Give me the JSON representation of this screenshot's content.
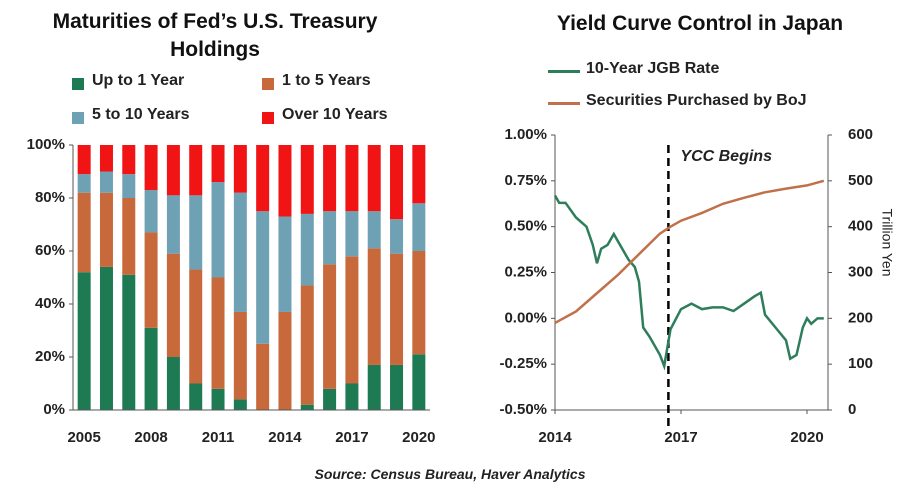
{
  "chart_data": [
    {
      "type": "bar",
      "title": "Maturities of Fed’s U.S. Treasury Holdings",
      "stacked": true,
      "categories": [
        "2005",
        null,
        null,
        "2008",
        null,
        null,
        "2011",
        null,
        null,
        "2014",
        null,
        null,
        "2017",
        null,
        null,
        "2020"
      ],
      "series": [
        {
          "name": "Up to 1 Year",
          "color": "#1e7a52",
          "values": [
            52,
            54,
            51,
            31,
            20,
            10,
            8,
            4,
            0,
            0,
            2,
            8,
            10,
            17,
            17,
            21
          ]
        },
        {
          "name": "1 to 5 Years",
          "color": "#c8693c",
          "values": [
            30,
            28,
            29,
            36,
            39,
            43,
            42,
            33,
            25,
            37,
            45,
            47,
            48,
            44,
            42,
            39
          ]
        },
        {
          "name": "5 to 10 Years",
          "color": "#6fa1b5",
          "values": [
            7,
            8,
            9,
            16,
            22,
            28,
            36,
            45,
            50,
            36,
            27,
            20,
            17,
            14,
            13,
            18
          ]
        },
        {
          "name": "Over 10 Years",
          "color": "#f01414",
          "values": [
            11,
            10,
            11,
            17,
            19,
            19,
            14,
            18,
            25,
            27,
            26,
            25,
            25,
            25,
            28,
            22
          ]
        }
      ],
      "ylim": [
        0,
        100
      ],
      "yticks": [
        {
          "value": 0,
          "label": "0%"
        },
        {
          "value": 20,
          "label": "20%"
        },
        {
          "value": 40,
          "label": "40%"
        },
        {
          "value": 60,
          "label": "60%"
        },
        {
          "value": 80,
          "label": "80%"
        },
        {
          "value": 100,
          "label": "100%"
        }
      ]
    },
    {
      "type": "line",
      "title": "Yield Curve Control in Japan",
      "y2_label": "Trillion Yen",
      "series": [
        {
          "name": "10-Year JGB Rate",
          "color": "#2e7d5b",
          "x": [
            2014.0,
            2014.1,
            2014.25,
            2014.5,
            2014.75,
            2014.9,
            2015.0,
            2015.1,
            2015.25,
            2015.4,
            2015.5,
            2015.75,
            2015.9,
            2016.0,
            2016.1,
            2016.25,
            2016.5,
            2016.6,
            2016.75,
            2017.0,
            2017.25,
            2017.5,
            2017.75,
            2018.0,
            2018.25,
            2018.5,
            2018.75,
            2018.9,
            2019.0,
            2019.25,
            2019.5,
            2019.6,
            2019.75,
            2019.9,
            2020.0,
            2020.1,
            2020.25,
            2020.4
          ],
          "values": [
            0.67,
            0.63,
            0.63,
            0.55,
            0.5,
            0.4,
            0.3,
            0.38,
            0.4,
            0.46,
            0.42,
            0.32,
            0.28,
            0.2,
            -0.05,
            -0.1,
            -0.2,
            -0.26,
            -0.06,
            0.05,
            0.08,
            0.05,
            0.06,
            0.06,
            0.04,
            0.08,
            0.12,
            0.14,
            0.02,
            -0.05,
            -0.12,
            -0.22,
            -0.2,
            -0.05,
            0.0,
            -0.03,
            0.0,
            0.0
          ]
        },
        {
          "name": "Securities Purchased by BoJ",
          "color": "#c0714a",
          "axis": "y2",
          "x": [
            2014.0,
            2014.5,
            2015.0,
            2015.5,
            2016.0,
            2016.5,
            2016.75,
            2017.0,
            2017.5,
            2018.0,
            2018.5,
            2019.0,
            2019.5,
            2020.0,
            2020.4
          ],
          "values": [
            190,
            215,
            255,
            295,
            340,
            385,
            400,
            413,
            430,
            450,
            463,
            475,
            483,
            490,
            500
          ]
        }
      ],
      "annotations": [
        {
          "text": "YCC Begins",
          "x": 2016.7
        }
      ],
      "xlim": [
        2014,
        2020.5
      ],
      "xticks": [
        2014,
        2017,
        2020
      ],
      "ylim": [
        -0.5,
        1.0
      ],
      "yticks": [
        {
          "value": -0.5,
          "label": "-0.50%"
        },
        {
          "value": -0.25,
          "label": "-0.25%"
        },
        {
          "value": 0,
          "label": "0.00%"
        },
        {
          "value": 0.25,
          "label": "0.25%"
        },
        {
          "value": 0.5,
          "label": "0.50%"
        },
        {
          "value": 0.75,
          "label": "0.75%"
        },
        {
          "value": 1.0,
          "label": "1.00%"
        }
      ],
      "y2lim": [
        0,
        600
      ],
      "y2ticks": [
        0,
        100,
        200,
        300,
        400,
        500,
        600
      ]
    }
  ],
  "source": "Source: Census Bureau, Haver Analytics"
}
